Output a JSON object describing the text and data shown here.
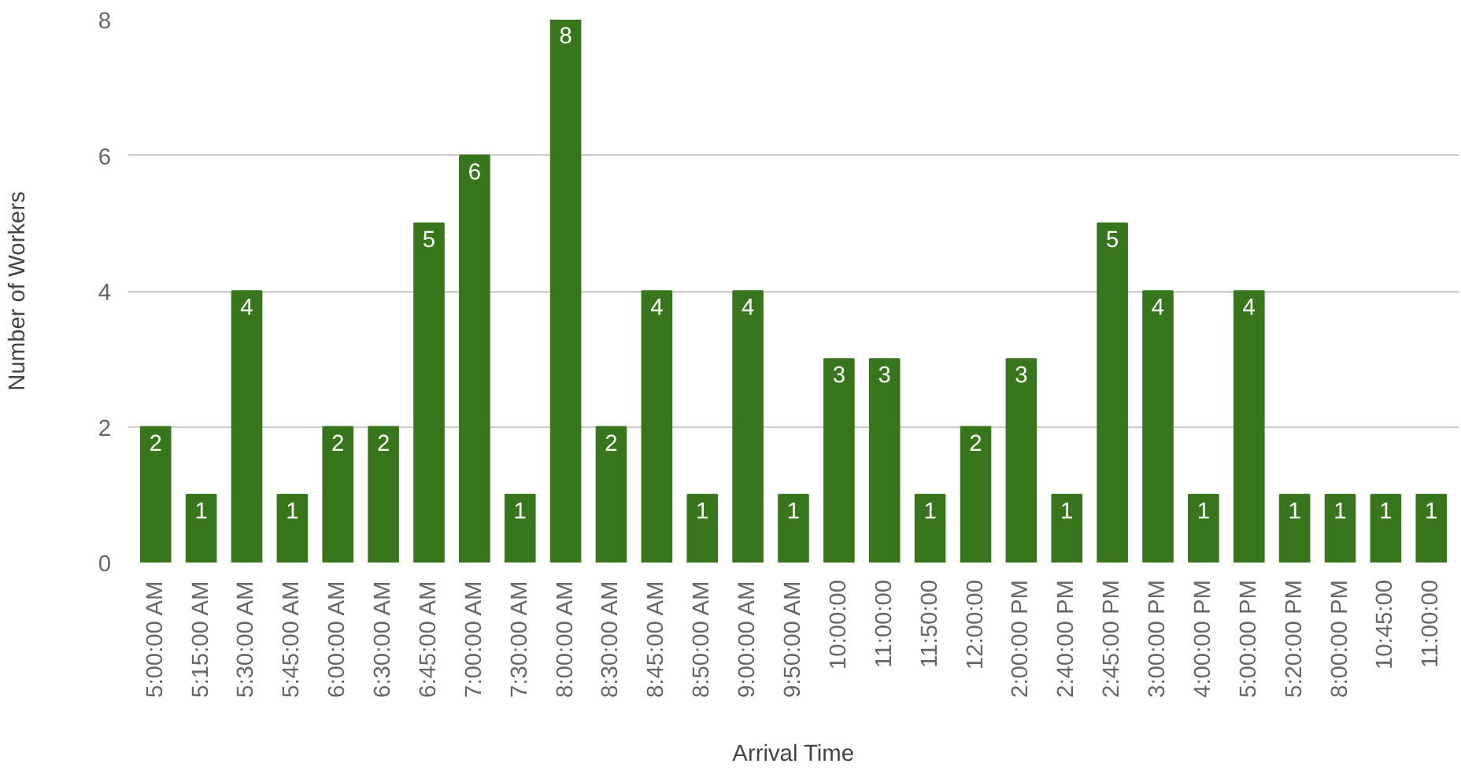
{
  "chart_data": {
    "type": "bar",
    "xlabel": "Arrival Time",
    "ylabel": "Number of Workers",
    "categories": [
      "5:00:00 AM",
      "5:15:00 AM",
      "5:30:00 AM",
      "5:45:00 AM",
      "6:00:00 AM",
      "6:30:00 AM",
      "6:45:00 AM",
      "7:00:00 AM",
      "7:30:00 AM",
      "8:00:00 AM",
      "8:30:00 AM",
      "8:45:00 AM",
      "8:50:00 AM",
      "9:00:00 AM",
      "9:50:00 AM",
      "10:00:00",
      "11:00:00",
      "11:50:00",
      "12:00:00",
      "2:00:00 PM",
      "2:40:00 PM",
      "2:45:00 PM",
      "3:00:00 PM",
      "4:00:00 PM",
      "5:00:00 PM",
      "5:20:00 PM",
      "8:00:00 PM",
      "10:45:00",
      "11:00:00"
    ],
    "values": [
      2,
      1,
      4,
      1,
      2,
      2,
      5,
      6,
      1,
      8,
      2,
      4,
      1,
      4,
      1,
      3,
      3,
      1,
      2,
      3,
      1,
      5,
      4,
      1,
      4,
      1,
      1,
      1,
      1
    ],
    "color": "#38761d",
    "ylim": [
      0,
      8
    ],
    "yticks": [
      0,
      2,
      4,
      6,
      8
    ],
    "grid": "y",
    "data_labels": true
  }
}
